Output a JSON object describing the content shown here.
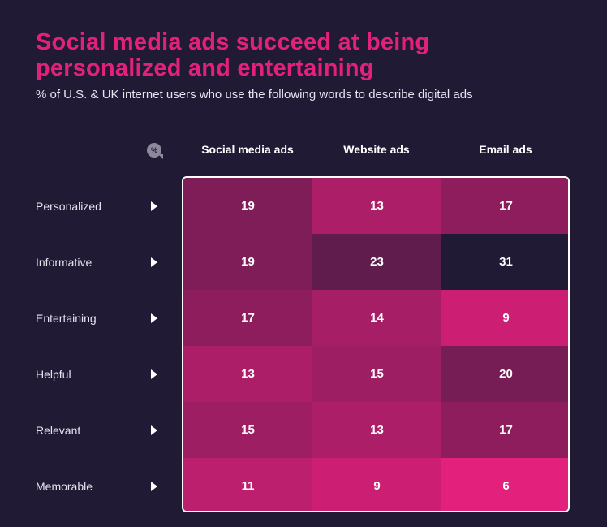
{
  "title_line1": "Social media ads succeed at being",
  "title_line2": "personalized and entertaining",
  "subtitle": "% of U.S. & UK internet users who use the following words to describe digital ads",
  "percent_icon": "%",
  "chart_data": {
    "type": "heatmap",
    "title": "Social media ads succeed at being personalized and entertaining",
    "subtitle": "% of U.S. & UK internet users who use the following words to describe digital ads",
    "columns": [
      "Social media ads",
      "Website ads",
      "Email ads"
    ],
    "rows": [
      "Personalized",
      "Informative",
      "Entertaining",
      "Helpful",
      "Relevant",
      "Memorable"
    ],
    "values": [
      [
        19,
        13,
        17
      ],
      [
        19,
        23,
        31
      ],
      [
        17,
        14,
        9
      ],
      [
        13,
        15,
        20
      ],
      [
        15,
        13,
        17
      ],
      [
        11,
        9,
        6
      ]
    ],
    "color_low": "#e4207d",
    "color_high": "#201a35"
  }
}
